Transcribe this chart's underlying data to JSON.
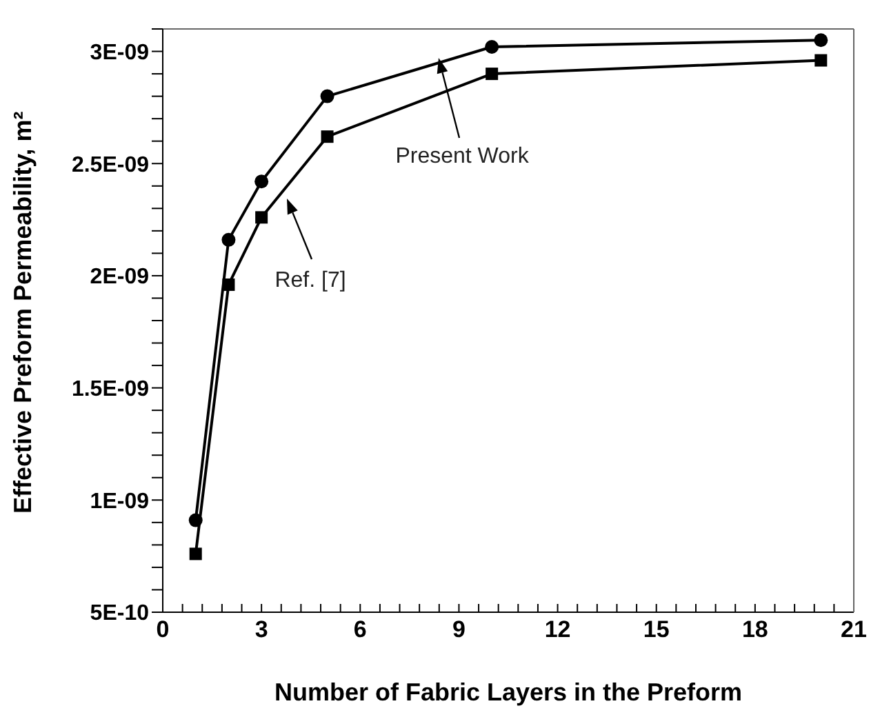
{
  "chart_data": {
    "type": "line",
    "xlabel": "Number of Fabric Layers in the Preform",
    "ylabel": "Effective Preform Permeability, m²",
    "x": [
      1,
      2,
      3,
      5,
      10,
      20
    ],
    "series": [
      {
        "color": "#000000",
        "marker": "circle",
        "values": [
          9.1e-10,
          2.16e-09,
          2.42e-09,
          2.8e-09,
          3.02e-09,
          3.05e-09
        ]
      },
      {
        "color": "#000000",
        "marker": "square",
        "values": [
          7.6e-10,
          1.96e-09,
          2.26e-09,
          2.62e-09,
          2.9e-09,
          2.96e-09
        ]
      }
    ],
    "xlim": [
      0,
      21
    ],
    "xticks": [
      0,
      {
        "value": 0.6,
        "label": null
      },
      {
        "value": 1.2,
        "label": null
      },
      {
        "value": 1.8,
        "label": null
      },
      {
        "value": 2.4,
        "label": null
      },
      3,
      {
        "value": 3.6,
        "label": null
      },
      {
        "value": 4.2,
        "label": null
      },
      {
        "value": 4.8,
        "label": null
      },
      {
        "value": 5.4,
        "label": null
      },
      6,
      {
        "value": 6.6,
        "label": null
      },
      {
        "value": 7.2,
        "label": null
      },
      {
        "value": 7.8,
        "label": null
      },
      {
        "value": 8.4,
        "label": null
      },
      9,
      {
        "value": 9.6,
        "label": null
      },
      {
        "value": 10.2,
        "label": null
      },
      {
        "value": 10.8,
        "label": null
      },
      {
        "value": 11.4,
        "label": null
      },
      12,
      {
        "value": 12.6,
        "label": null
      },
      {
        "value": 13.2,
        "label": null
      },
      {
        "value": 13.8,
        "label": null
      },
      {
        "value": 14.4,
        "label": null
      },
      15,
      {
        "value": 15.6,
        "label": null
      },
      {
        "value": 16.2,
        "label": null
      },
      {
        "value": 16.8,
        "label": null
      },
      {
        "value": 17.4,
        "label": null
      },
      18,
      {
        "value": 18.6,
        "label": null
      },
      {
        "value": 19.2,
        "label": null
      },
      {
        "value": 19.8,
        "label": null
      },
      {
        "value": 20.4,
        "label": null
      },
      21
    ],
    "ylim": [
      5e-10,
      3.1e-09
    ],
    "yticks": [
      {
        "value": 5e-10,
        "label": "5E-10"
      },
      {
        "value": 6e-10,
        "label": null
      },
      {
        "value": 7e-10,
        "label": null
      },
      {
        "value": 8e-10,
        "label": null
      },
      {
        "value": 9e-10,
        "label": null
      },
      {
        "value": 1e-09,
        "label": "1E-09"
      },
      {
        "value": 1.1e-09,
        "label": null
      },
      {
        "value": 1.2e-09,
        "label": null
      },
      {
        "value": 1.3e-09,
        "label": null
      },
      {
        "value": 1.4e-09,
        "label": null
      },
      {
        "value": 1.5e-09,
        "label": "1.5E-09"
      },
      {
        "value": 1.6e-09,
        "label": null
      },
      {
        "value": 1.7e-09,
        "label": null
      },
      {
        "value": 1.8e-09,
        "label": null
      },
      {
        "value": 1.9e-09,
        "label": null
      },
      {
        "value": 2e-09,
        "label": "2E-09"
      },
      {
        "value": 2.1e-09,
        "label": null
      },
      {
        "value": 2.2e-09,
        "label": null
      },
      {
        "value": 2.3e-09,
        "label": null
      },
      {
        "value": 2.4e-09,
        "label": null
      },
      {
        "value": 2.5e-09,
        "label": "2.5E-09"
      },
      {
        "value": 2.6e-09,
        "label": null
      },
      {
        "value": 2.7e-09,
        "label": null
      },
      {
        "value": 2.8e-09,
        "label": null
      },
      {
        "value": 2.9e-09,
        "label": null
      },
      {
        "value": 3e-09,
        "label": "3E-09"
      },
      {
        "value": 3.1e-09,
        "label": null
      }
    ],
    "grid": false,
    "legend": false,
    "line_style": "solid",
    "annotations": [
      "Present Work",
      "Ref. [7]"
    ]
  }
}
